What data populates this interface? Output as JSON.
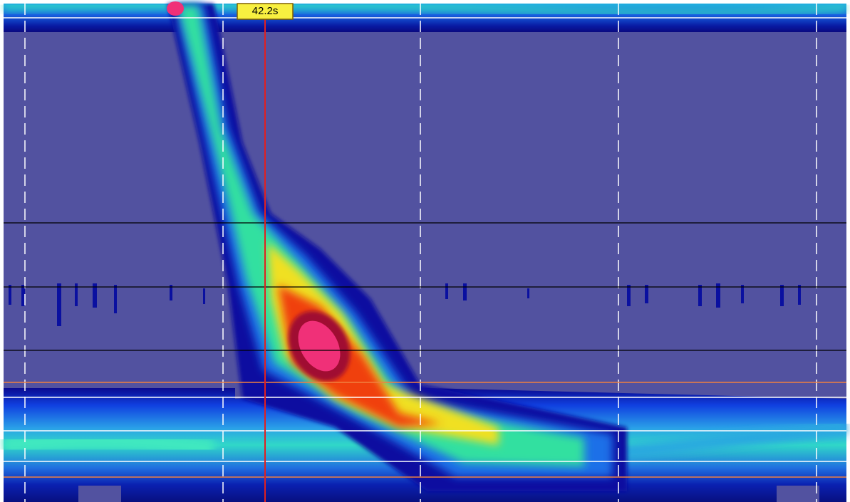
{
  "cursor_label": "42.2s"
}
